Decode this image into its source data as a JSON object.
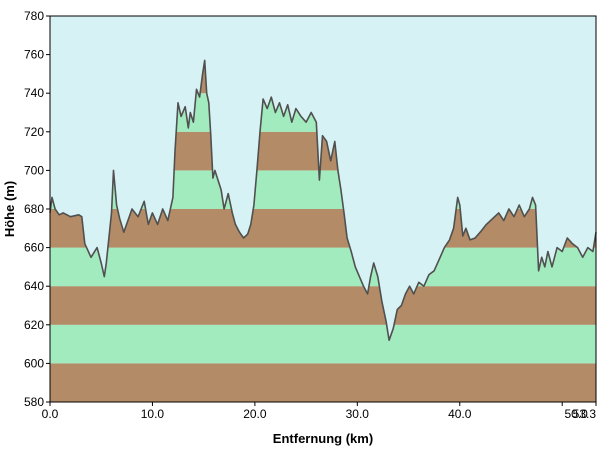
{
  "chart_data": {
    "type": "area",
    "title": "",
    "xlabel": "Entfernung  (km)",
    "ylabel": "Höhe (m)",
    "xlim": [
      0,
      53.3
    ],
    "ylim": [
      580,
      780
    ],
    "x_ticks": [
      {
        "value": 0,
        "label": "0.0"
      },
      {
        "value": 10,
        "label": "10.0"
      },
      {
        "value": 20,
        "label": "20.0"
      },
      {
        "value": 30,
        "label": "30.0"
      },
      {
        "value": 40,
        "label": "40.0"
      },
      {
        "value": 50,
        "label": "50.0"
      },
      {
        "value": 53.3,
        "label": "53.3"
      }
    ],
    "y_ticks": [
      580,
      600,
      620,
      640,
      660,
      680,
      700,
      720,
      740,
      760,
      780
    ],
    "band_interval": 20,
    "grid": false,
    "colors": {
      "sky": "#d6f2f4",
      "band_brown": "#b38b66",
      "band_green": "#a2ebbe",
      "outline": "#505050"
    },
    "series": [
      {
        "x": [
          0,
          0.2,
          0.5,
          0.9,
          1.3,
          2.0,
          2.8,
          3.1,
          3.4,
          4.0,
          4.6,
          5.0,
          5.3,
          5.5,
          6.0,
          6.2,
          6.5,
          6.8,
          7.2,
          7.6,
          8.0,
          8.6,
          9.2,
          9.6,
          10.0,
          10.5,
          11.0,
          11.5,
          12.0,
          12.2,
          12.5,
          12.8,
          13.2,
          13.5,
          13.7,
          14.0,
          14.3,
          14.6,
          14.9,
          15.1,
          15.3,
          15.5,
          15.7,
          15.9,
          16.1,
          16.4,
          16.7,
          17.0,
          17.4,
          17.8,
          18.1,
          18.5,
          18.9,
          19.3,
          19.6,
          19.9,
          20.2,
          20.5,
          20.8,
          21.2,
          21.6,
          22.0,
          22.4,
          22.8,
          23.2,
          23.6,
          24.0,
          24.5,
          25.0,
          25.5,
          26.0,
          26.3,
          26.6,
          27.0,
          27.4,
          27.8,
          28.1,
          28.4,
          28.7,
          29.0,
          29.4,
          29.8,
          30.2,
          30.6,
          31.0,
          31.3,
          31.6,
          32.0,
          32.4,
          32.8,
          33.1,
          33.5,
          33.9,
          34.3,
          34.7,
          35.1,
          35.5,
          36.0,
          36.5,
          37.0,
          37.5,
          38.0,
          38.5,
          39.0,
          39.4,
          39.8,
          40.0,
          40.3,
          40.6,
          41.0,
          41.5,
          42.0,
          42.6,
          43.2,
          43.8,
          44.3,
          44.8,
          45.3,
          45.8,
          46.3,
          46.8,
          47.1,
          47.4,
          47.7,
          48.0,
          48.3,
          48.6,
          49.0,
          49.5,
          50.0,
          50.5,
          51.0,
          51.5,
          52.0,
          52.5,
          53.0,
          53.3
        ],
        "y": [
          678,
          686,
          680,
          677,
          678,
          676,
          677,
          676,
          662,
          655,
          660,
          652,
          645,
          652,
          678,
          700,
          682,
          675,
          668,
          674,
          680,
          676,
          684,
          672,
          678,
          672,
          680,
          674,
          686,
          710,
          735,
          728,
          733,
          722,
          730,
          725,
          742,
          738,
          750,
          757,
          740,
          735,
          718,
          696,
          700,
          695,
          690,
          680,
          688,
          678,
          672,
          668,
          665,
          667,
          672,
          682,
          700,
          720,
          737,
          732,
          738,
          730,
          735,
          728,
          734,
          725,
          732,
          728,
          725,
          730,
          725,
          695,
          718,
          715,
          705,
          715,
          700,
          690,
          678,
          665,
          658,
          650,
          645,
          640,
          636,
          645,
          652,
          645,
          632,
          622,
          612,
          618,
          628,
          630,
          636,
          640,
          636,
          642,
          640,
          646,
          648,
          654,
          660,
          664,
          670,
          686,
          682,
          666,
          670,
          664,
          665,
          668,
          672,
          675,
          678,
          674,
          680,
          676,
          682,
          676,
          680,
          686,
          682,
          648,
          655,
          650,
          658,
          650,
          660,
          658,
          665,
          662,
          660,
          655,
          660,
          658,
          668
        ]
      }
    ]
  }
}
